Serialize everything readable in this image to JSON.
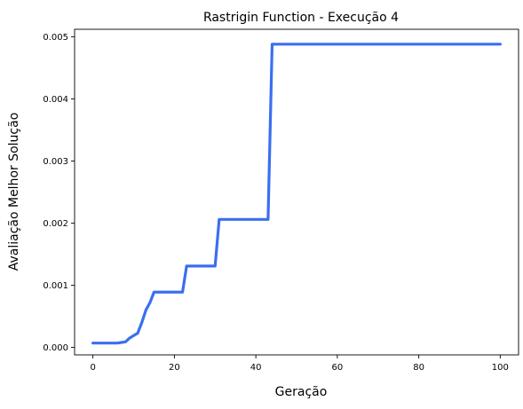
{
  "chart_data": {
    "type": "line",
    "title": "Rastrigin Function - Execução 4",
    "xlabel": "Geração",
    "ylabel": "Avaliação Melhor Solução",
    "xlim": [
      -4.5,
      104.5
    ],
    "ylim": [
      -0.00012,
      0.00512
    ],
    "xticks": [
      0,
      20,
      40,
      60,
      80,
      100
    ],
    "yticks": [
      0.0,
      0.001,
      0.002,
      0.003,
      0.004,
      0.005
    ],
    "ytick_labels": [
      "0.000",
      "0.001",
      "0.002",
      "0.003",
      "0.004",
      "0.005"
    ],
    "grid": false,
    "line_color": "#3b6ff0",
    "series": [
      {
        "x": [
          0,
          6,
          7,
          8,
          9,
          10,
          11,
          12,
          13,
          14,
          15,
          16,
          22,
          23,
          29,
          30,
          31,
          43,
          44,
          100
        ],
        "y": [
          7e-05,
          7e-05,
          8e-05,
          9e-05,
          0.00015,
          0.00019,
          0.00023,
          0.0004,
          0.0006,
          0.00072,
          0.00089,
          0.00089,
          0.00089,
          0.00131,
          0.00131,
          0.00131,
          0.00206,
          0.00206,
          0.00488,
          0.00488
        ]
      }
    ]
  }
}
